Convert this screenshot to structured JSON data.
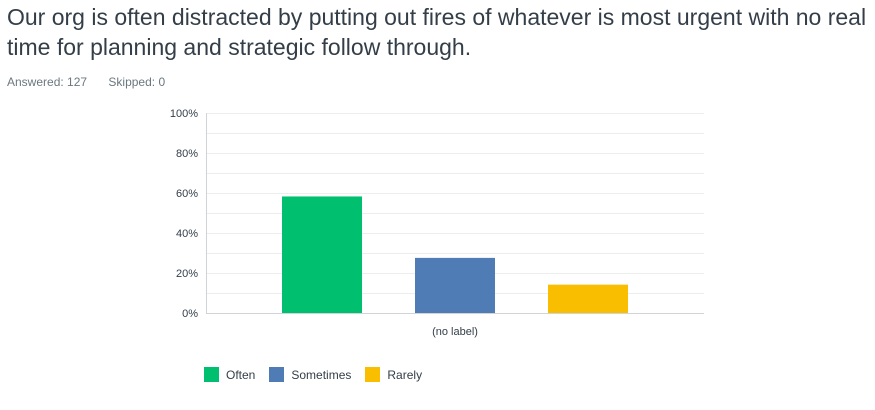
{
  "question": {
    "title": "Our org is often distracted by putting out fires of whatever is most urgent with no real time for planning and strategic follow through."
  },
  "meta": {
    "answered": "Answered: 127",
    "skipped": "Skipped: 0"
  },
  "chart_data": {
    "type": "bar",
    "categories": [
      "(no label)"
    ],
    "series": [
      {
        "name": "Often",
        "values": [
          58.27
        ],
        "color": "#00bf6f"
      },
      {
        "name": "Sometimes",
        "values": [
          27.56
        ],
        "color": "#507cb6"
      },
      {
        "name": "Rarely",
        "values": [
          14.17
        ],
        "color": "#f9be00"
      }
    ],
    "yticks": [
      "0%",
      "20%",
      "40%",
      "60%",
      "80%",
      "100%"
    ],
    "ylim": [
      0,
      100
    ],
    "grid": true,
    "legend_position": "bottom-left"
  }
}
